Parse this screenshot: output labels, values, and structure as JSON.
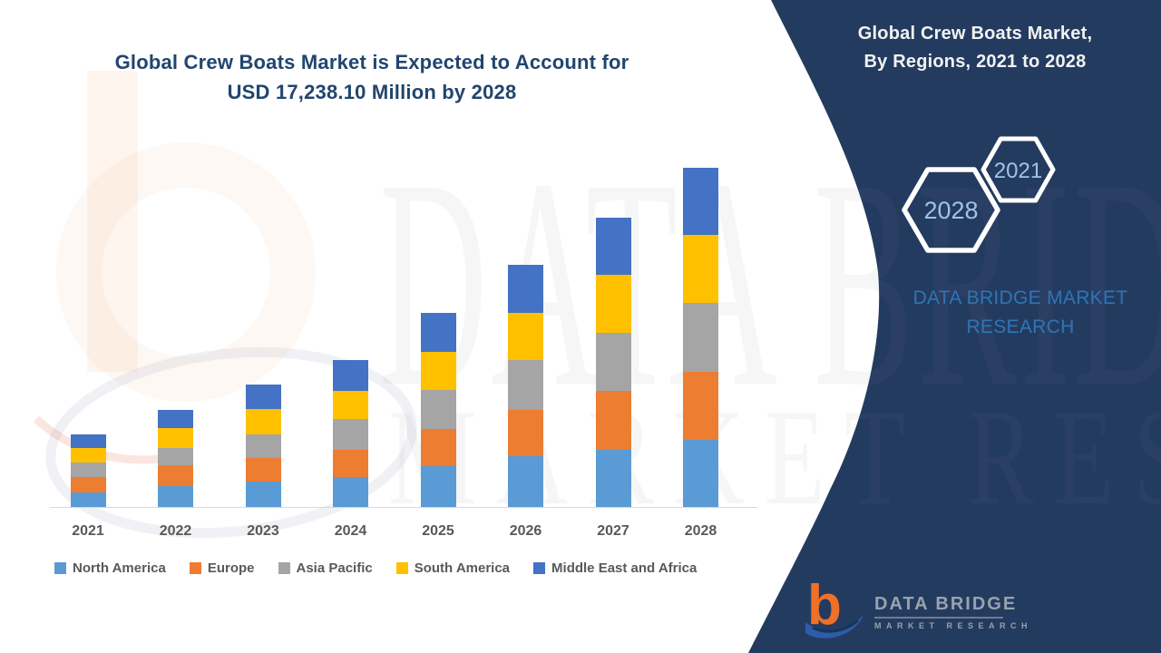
{
  "header": {
    "left_title_line1": "Global Crew Boats Market is Expected to Account for",
    "left_title_line2": "USD 17,238.10 Million by 2028",
    "panel_title_line1": "Global Crew Boats Market,",
    "panel_title_line2": "By Regions, 2021 to 2028"
  },
  "panel": {
    "background_color": "#243b60",
    "hexagons": [
      {
        "label": "2028"
      },
      {
        "label": "2021"
      }
    ],
    "hex_label_color": "#9dc3e6",
    "brand_line1": "DATA BRIDGE MARKET",
    "brand_line2": "RESEARCH",
    "logo": {
      "name": "DATA BRIDGE",
      "tagline": "MARKET RESEARCH",
      "mark_color": "#f07028",
      "swoosh_color": "#2d5ca8"
    }
  },
  "watermark": {
    "line1": "DATA BRIDGE",
    "line2": "MARKET RESEARCH"
  },
  "chart_data": {
    "type": "bar",
    "stacked": true,
    "unit": "USD Million",
    "title": "Global Crew Boats Market, By Regions, 2021 to 2028",
    "annotation": "USD 17,238.10 Million total by 2028",
    "categories": [
      "2021",
      "2022",
      "2023",
      "2024",
      "2025",
      "2026",
      "2027",
      "2028"
    ],
    "series": [
      {
        "name": "North America",
        "color": "#5b9bd5",
        "values": [
          737,
          1041,
          1289,
          1501,
          2058,
          2565,
          2901,
          3421
        ]
      },
      {
        "name": "Europe",
        "color": "#ed7d31",
        "values": [
          783,
          1078,
          1197,
          1382,
          1888,
          2376,
          2993,
          3426
        ]
      },
      {
        "name": "Asia Pacific",
        "color": "#a5a5a5",
        "values": [
          718,
          875,
          1211,
          1584,
          1994,
          2533,
          2947,
          3527
        ]
      },
      {
        "name": "South America",
        "color": "#ffc000",
        "values": [
          755,
          1013,
          1276,
          1441,
          1934,
          2395,
          2961,
          3426
        ]
      },
      {
        "name": "Middle East and Africa",
        "color": "#4472c4",
        "values": [
          705,
          921,
          1243,
          1552,
          1994,
          2441,
          2887,
          3438.1
        ]
      }
    ],
    "totals": [
      3698,
      4928,
      6216,
      7460,
      9868,
      12310,
      14689,
      17238.1
    ],
    "xlabel": "",
    "ylabel": "",
    "gridlines": false,
    "legend_position": "bottom",
    "x_label_color": "#595959",
    "axis_line_color": "#d9d9d9"
  }
}
